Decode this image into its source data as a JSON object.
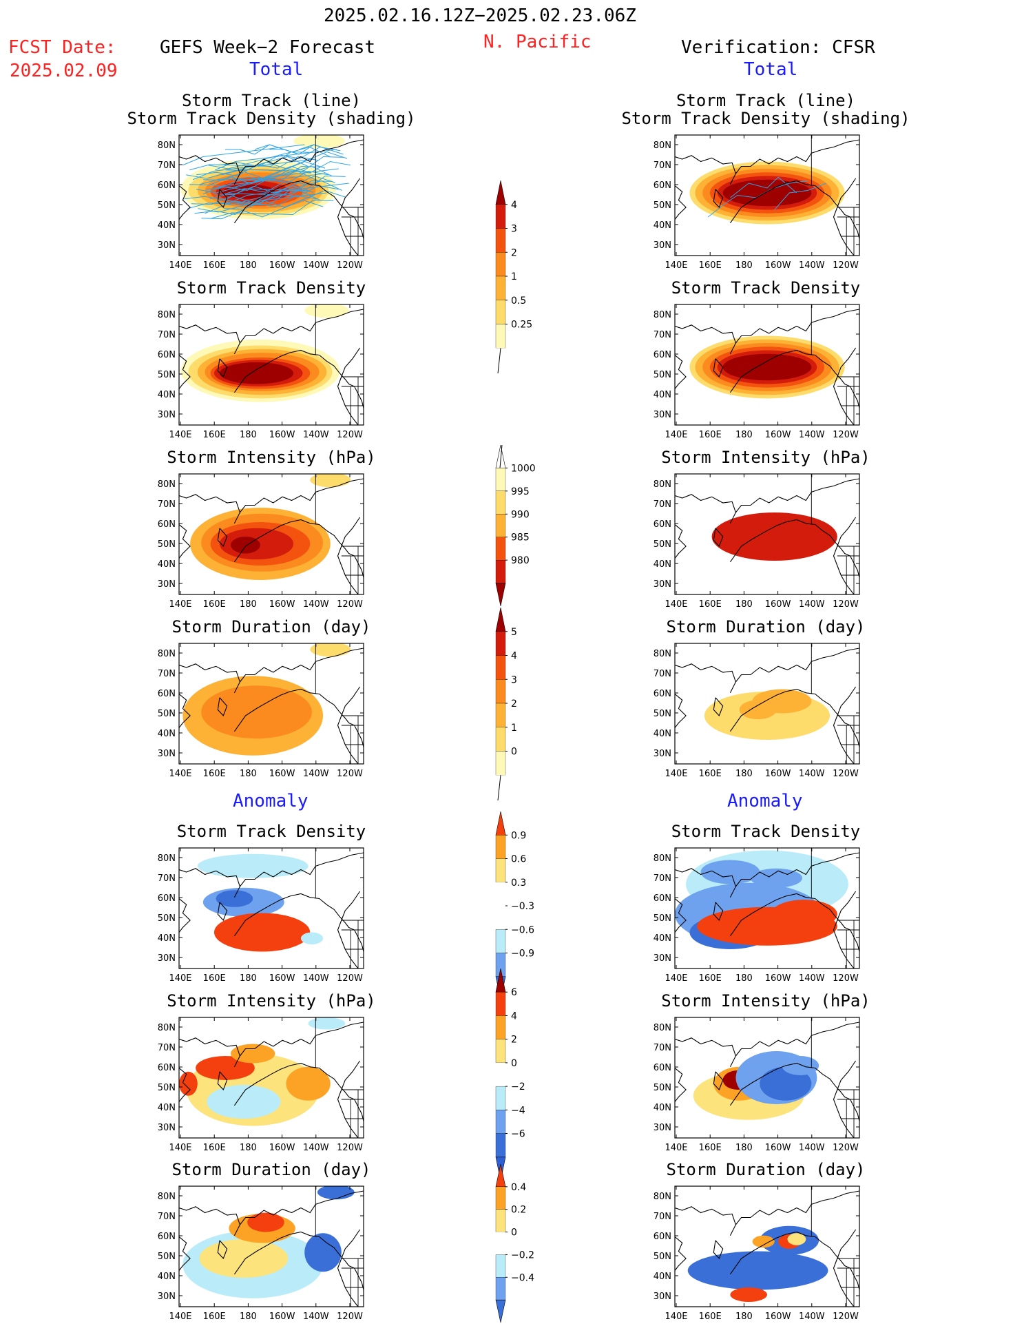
{
  "header": {
    "date_range": "2025.02.16.12Z−2025.02.23.06Z",
    "region": "N. Pacific",
    "fcst_label": "FCST Date:",
    "fcst_date": "2025.02.09",
    "left_title": "GEFS Week−2 Forecast",
    "right_title": "Verification: CFSR",
    "total_label": "Total",
    "anomaly_label": "Anomaly"
  },
  "panel_titles": {
    "track_line": "Storm Track (line)",
    "track_shading": "Storm Track Density (shading)",
    "density": "Storm Track Density",
    "intensity": "Storm Intensity (hPa)",
    "duration": "Storm Duration (day)"
  },
  "axes": {
    "lat_ticks": [
      "80N",
      "70N",
      "60N",
      "50N",
      "40N",
      "30N"
    ],
    "lon_ticks": [
      "140E",
      "160E",
      "180",
      "160W",
      "140W",
      "120W"
    ]
  },
  "colors": {
    "warm": [
      "#fff9b8",
      "#fddc6b",
      "#fdb235",
      "#fb8b1e",
      "#f4530f",
      "#d31c0b",
      "#9e0000"
    ],
    "cool": [
      "#3a6fd8",
      "#6fa2ee",
      "#b9ecf8"
    ],
    "anom_warm": [
      "#fde37b",
      "#fca326",
      "#f3400e",
      "#9e0000"
    ],
    "track_line": "#2da4e8"
  },
  "colorbars": [
    {
      "name": "density-total-colorbar",
      "ticks": [
        "4",
        "3",
        "2",
        "1",
        "0.5",
        "0.25"
      ]
    },
    {
      "name": "intensity-total-colorbar",
      "ticks": [
        "1000",
        "995",
        "990",
        "985",
        "980"
      ]
    },
    {
      "name": "duration-total-colorbar",
      "ticks": [
        "5",
        "4",
        "3",
        "2",
        "1",
        "0"
      ]
    },
    {
      "name": "density-anomaly-colorbar",
      "ticks": [
        "0.9",
        "0.6",
        "0.3",
        "−0.3",
        "−0.6",
        "−0.9"
      ]
    },
    {
      "name": "intensity-anomaly-colorbar",
      "ticks": [
        "6",
        "4",
        "2",
        "0",
        "−2",
        "−4",
        "−6"
      ]
    },
    {
      "name": "duration-anomaly-colorbar",
      "ticks": [
        "0.4",
        "0.2",
        "0",
        "−0.2",
        "−0.4"
      ]
    }
  ]
}
